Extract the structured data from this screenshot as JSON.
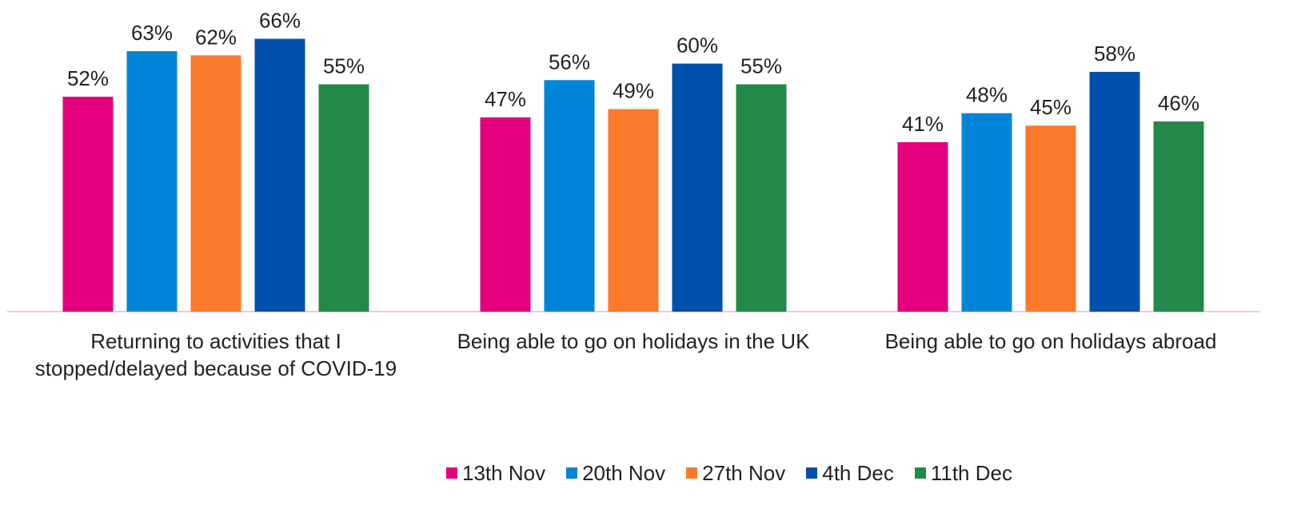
{
  "chart_data": {
    "type": "bar",
    "categories": [
      "Returning to activities that I stopped/delayed because of COVID-19",
      "Being able to go on holidays in the UK",
      "Being able to go on holidays abroad"
    ],
    "series": [
      {
        "name": "13th Nov",
        "color": "#e5007e",
        "values": [
          52,
          47,
          41
        ],
        "value_labels": [
          "52%",
          "47%",
          "41%"
        ]
      },
      {
        "name": "20th Nov",
        "color": "#0085d8",
        "values": [
          63,
          56,
          48
        ],
        "value_labels": [
          "63%",
          "56%",
          "48%"
        ]
      },
      {
        "name": "27th Nov",
        "color": "#fc7a2b",
        "values": [
          62,
          49,
          45
        ],
        "value_labels": [
          "62%",
          "49%",
          "45%"
        ]
      },
      {
        "name": "4th Dec",
        "color": "#0050ae",
        "values": [
          66,
          60,
          58
        ],
        "value_labels": [
          "66%",
          "60%",
          "58%"
        ]
      },
      {
        "name": "11th Dec",
        "color": "#23894a",
        "values": [
          55,
          55,
          46
        ],
        "value_labels": [
          "55%",
          "55%",
          "46%"
        ]
      }
    ],
    "ylim": [
      0,
      75
    ],
    "legend": "bottom"
  }
}
